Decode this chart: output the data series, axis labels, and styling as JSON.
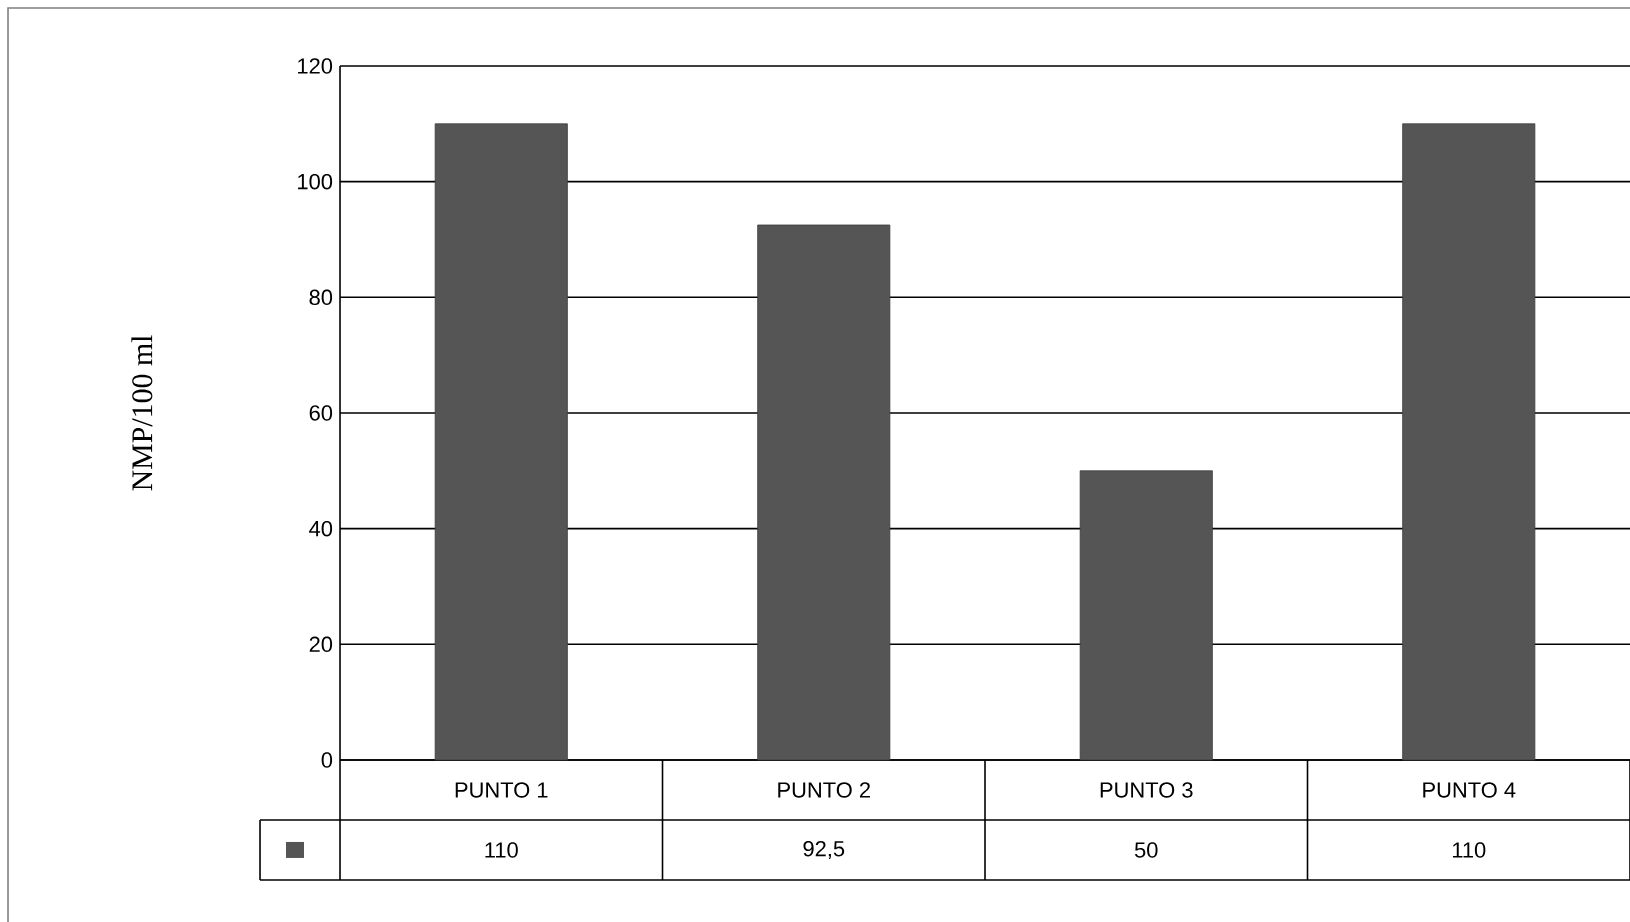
{
  "chart_data": {
    "type": "bar",
    "ylabel": "NMP/100 ml",
    "categories": [
      "PUNTO 1",
      "PUNTO 2",
      "PUNTO 3",
      "PUNTO 4"
    ],
    "values": [
      110,
      92.5,
      50,
      110
    ],
    "value_labels": [
      "110",
      "92,5",
      "50",
      "110"
    ],
    "color": "#555555",
    "ylim": [
      0,
      120
    ],
    "yticks": [
      0,
      20,
      40,
      60,
      80,
      100,
      120
    ],
    "grid": "y"
  }
}
